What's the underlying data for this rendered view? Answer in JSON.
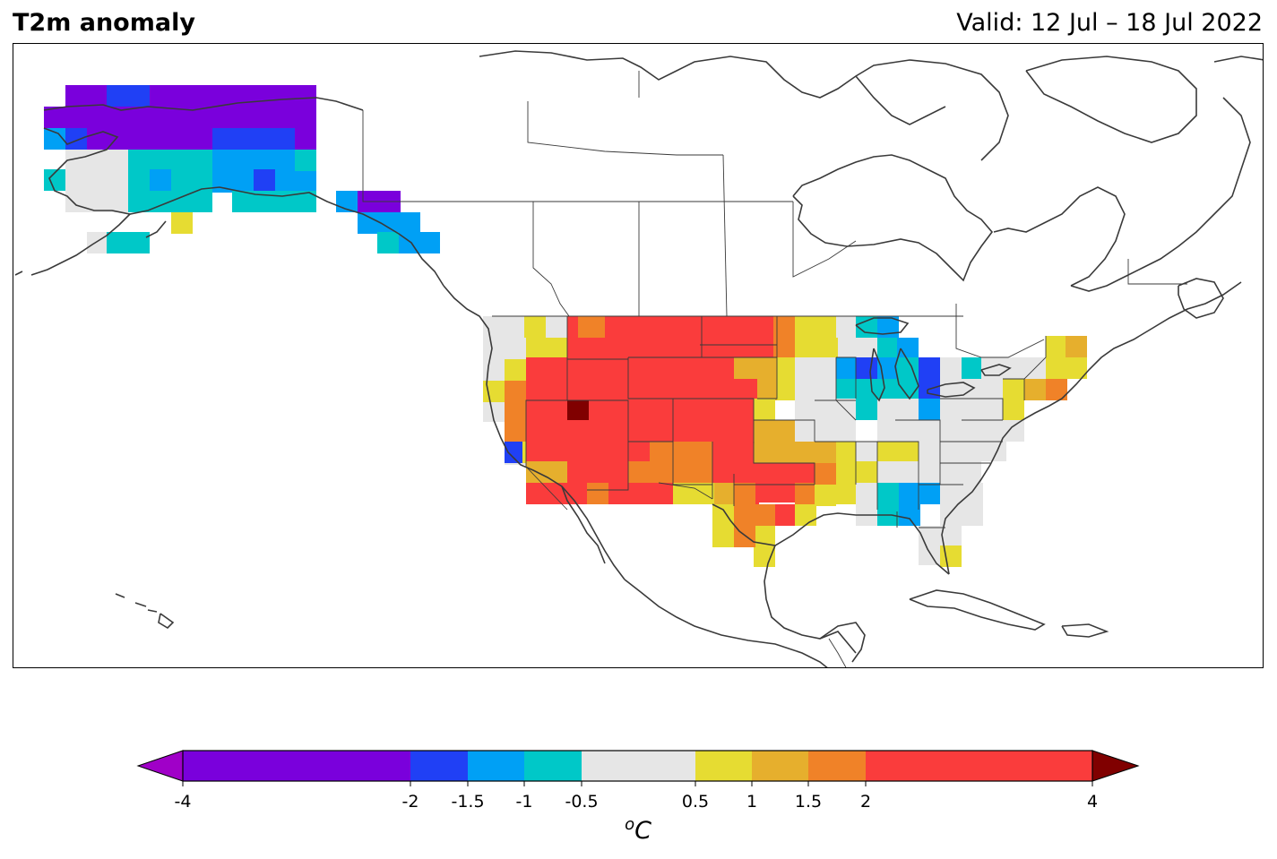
{
  "header": {
    "title": "T2m anomaly",
    "valid": "Valid: 12 Jul – 18 Jul 2022"
  },
  "colorbar": {
    "unit_base": "C",
    "unit_sup": "o",
    "ticks": [
      "-4",
      "-2",
      "-1.5",
      "-1",
      "-0.5",
      "0.5",
      "1",
      "1.5",
      "2",
      "4"
    ],
    "bins": [
      {
        "from": -4,
        "to": -2,
        "color": "#7a00dc"
      },
      {
        "from": -2,
        "to": -1.5,
        "color": "#2040f5"
      },
      {
        "from": -1.5,
        "to": -1,
        "color": "#00a0f5"
      },
      {
        "from": -1,
        "to": -0.5,
        "color": "#00c8c8"
      },
      {
        "from": -0.5,
        "to": 0.5,
        "color": "#e6e6e6"
      },
      {
        "from": 0.5,
        "to": 1,
        "color": "#e6dc32"
      },
      {
        "from": 1,
        "to": 1.5,
        "color": "#e6af2d"
      },
      {
        "from": 1.5,
        "to": 2,
        "color": "#f08228"
      },
      {
        "from": 2,
        "to": 4,
        "color": "#fa3c3c"
      }
    ],
    "under_color": "#a000c8",
    "over_color": "#800000"
  },
  "map": {
    "region": "North America",
    "legend_note": "anomaly classes by colour"
  }
}
